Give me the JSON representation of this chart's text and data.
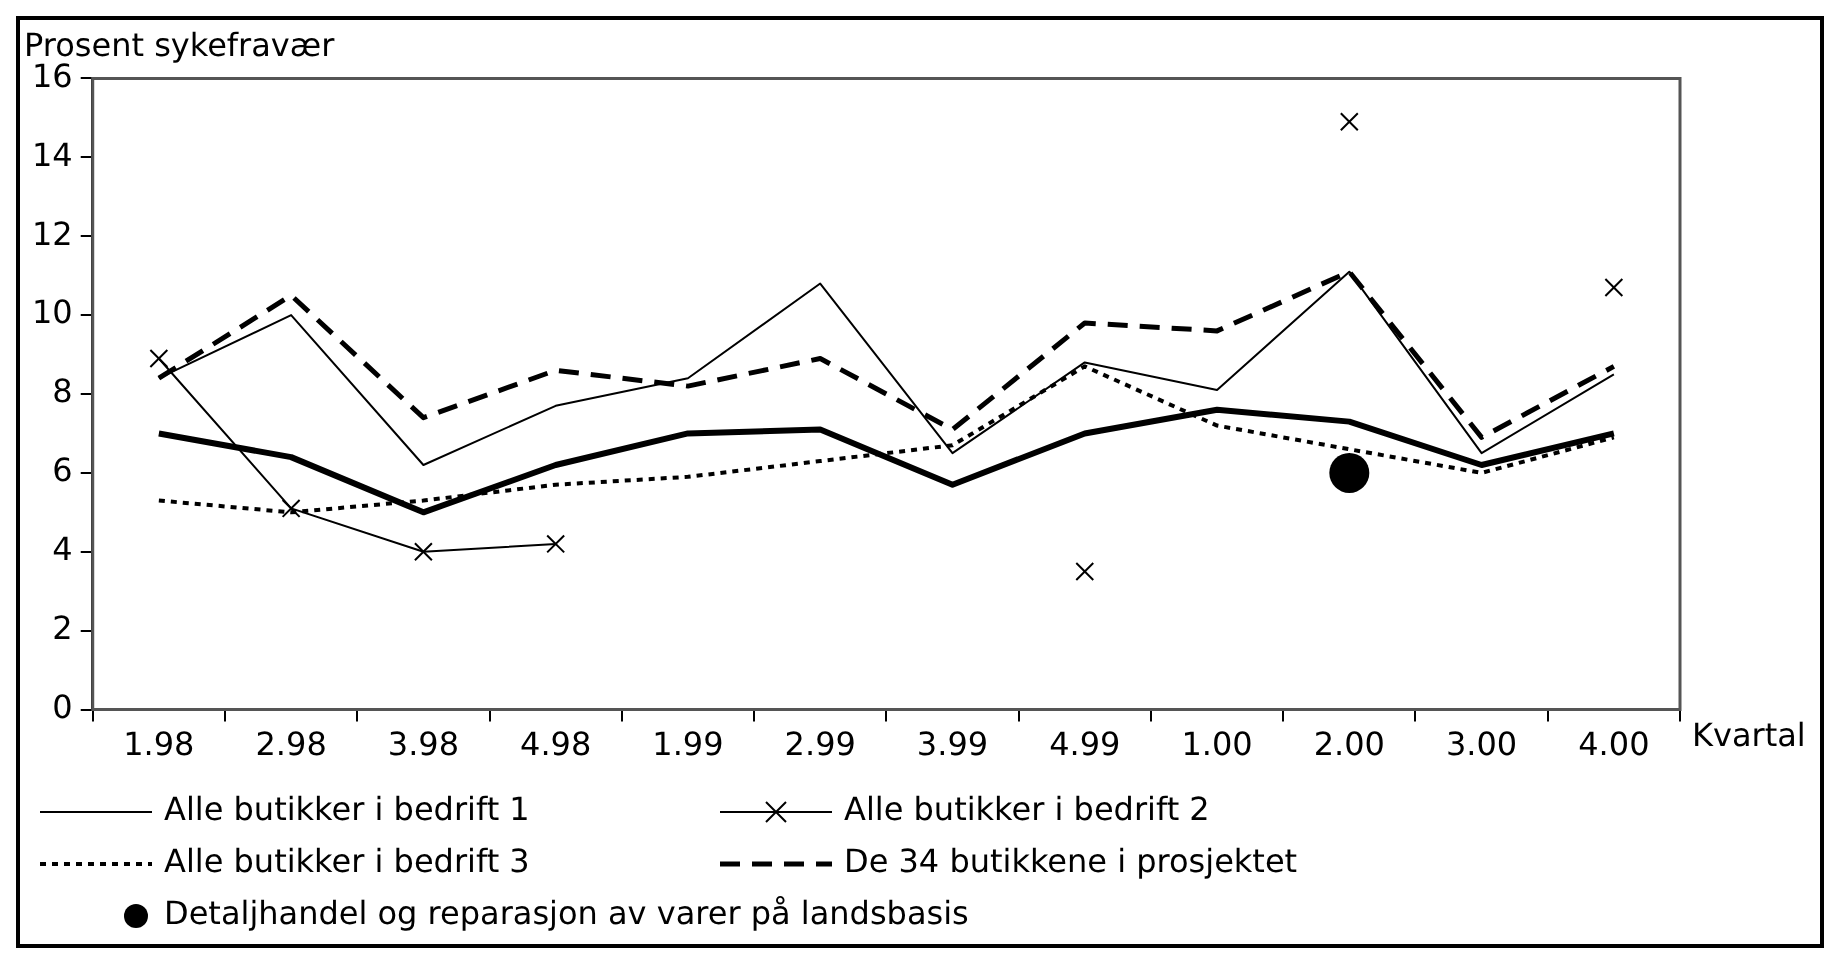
{
  "chart_data": {
    "type": "line",
    "ylabel": "Prosent sykefravær",
    "xlabel": "Kvartal",
    "categories": [
      "1.98",
      "2.98",
      "3.98",
      "4.98",
      "1.99",
      "2.99",
      "3.99",
      "4.99",
      "1.00",
      "2.00",
      "3.00",
      "4.00"
    ],
    "ylim": [
      0,
      16
    ],
    "yticks": [
      0,
      2,
      4,
      6,
      8,
      10,
      12,
      14,
      16
    ],
    "legend": "bottom",
    "series": [
      {
        "color": "#000000",
        "line_style": "solid",
        "marker": "none",
        "values": [
          7.0,
          6.4,
          5.0,
          6.2,
          7.0,
          7.1,
          5.7,
          7.0,
          7.6,
          7.3,
          6.2,
          7.0
        ]
      },
      {
        "name": "Alle butikker i bedrift 1",
        "color": "#000000",
        "line_style": "solid",
        "marker": "none",
        "values": [
          8.4,
          10.0,
          6.2,
          7.7,
          8.4,
          10.8,
          6.5,
          8.8,
          8.1,
          11.1,
          6.5,
          8.5
        ]
      },
      {
        "name": "Alle butikker i bedrift 2",
        "color": "#000000",
        "line_style": "solid",
        "marker": "cross",
        "values": [
          8.9,
          5.1,
          4.0,
          4.2,
          null,
          null,
          null,
          3.5,
          null,
          14.9,
          null,
          10.7
        ]
      },
      {
        "name": "Alle butikker i bedrift 3",
        "color": "#000000",
        "line_style": "dotted",
        "marker": "none",
        "values": [
          5.3,
          5.0,
          5.3,
          5.7,
          5.9,
          6.3,
          6.7,
          8.7,
          7.2,
          6.6,
          6.0,
          6.9
        ]
      },
      {
        "name": "De 34 butikkene i prosjektet",
        "color": "#000000",
        "line_style": "dashed",
        "marker": "none",
        "values": [
          8.4,
          10.5,
          7.4,
          8.6,
          8.2,
          8.9,
          7.1,
          9.8,
          9.6,
          11.1,
          6.9,
          8.7
        ]
      },
      {
        "name": "Detaljhandel og reparasjon av varer på landsbasis",
        "type": "scatter",
        "color": "#000000",
        "marker": "circle",
        "values": [
          null,
          null,
          null,
          null,
          null,
          null,
          null,
          null,
          null,
          6.0,
          null,
          null
        ]
      }
    ]
  }
}
